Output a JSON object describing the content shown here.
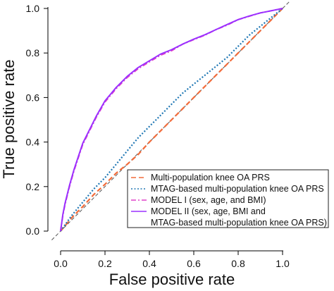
{
  "chart_data": {
    "type": "line",
    "xlabel": "False positive rate",
    "ylabel": "True positive rate",
    "xlim": [
      0,
      1
    ],
    "ylim": [
      0,
      1
    ],
    "x_ticks": [
      "0.0",
      "0.2",
      "0.4",
      "0.6",
      "0.8",
      "1.0"
    ],
    "y_ticks": [
      "0.0",
      "0.2",
      "0.4",
      "0.6",
      "0.8",
      "1.0"
    ],
    "grid": false,
    "legend_position": "bottom-right",
    "reference_line": {
      "x": [
        0,
        1
      ],
      "y": [
        0,
        1
      ],
      "color": "#555555",
      "style": "dashed"
    },
    "series": [
      {
        "name": "Multi-population knee OA PRS",
        "color": "#f26b3a",
        "style": "dashed",
        "x": [
          0,
          0.05,
          0.1,
          0.15,
          0.2,
          0.25,
          0.3,
          0.35,
          0.4,
          0.45,
          0.5,
          0.55,
          0.6,
          0.65,
          0.7,
          0.75,
          0.8,
          0.85,
          0.9,
          0.95,
          1.0
        ],
        "y": [
          0,
          0.06,
          0.11,
          0.165,
          0.21,
          0.26,
          0.3,
          0.345,
          0.4,
          0.45,
          0.5,
          0.55,
          0.6,
          0.65,
          0.7,
          0.75,
          0.8,
          0.85,
          0.9,
          0.95,
          1.0
        ]
      },
      {
        "name": "MTAG-based multi-population knee OA PRS",
        "color": "#1f77b4",
        "style": "dotted",
        "x": [
          0,
          0.05,
          0.1,
          0.15,
          0.2,
          0.25,
          0.3,
          0.35,
          0.4,
          0.45,
          0.5,
          0.55,
          0.6,
          0.65,
          0.7,
          0.75,
          0.8,
          0.85,
          0.9,
          0.95,
          1.0
        ],
        "y": [
          0,
          0.07,
          0.13,
          0.19,
          0.24,
          0.3,
          0.36,
          0.42,
          0.47,
          0.52,
          0.57,
          0.62,
          0.66,
          0.7,
          0.74,
          0.78,
          0.83,
          0.88,
          0.92,
          0.96,
          1.0
        ]
      },
      {
        "name": "MODEL I (sex, age, and BMI)",
        "color": "#e040c8",
        "style": "dashdot",
        "x": [
          0,
          0.01,
          0.02,
          0.04,
          0.06,
          0.08,
          0.1,
          0.13,
          0.16,
          0.2,
          0.25,
          0.3,
          0.35,
          0.4,
          0.45,
          0.5,
          0.55,
          0.6,
          0.65,
          0.7,
          0.75,
          0.8,
          0.85,
          0.9,
          0.95,
          1.0
        ],
        "y": [
          0,
          0.07,
          0.12,
          0.2,
          0.27,
          0.33,
          0.39,
          0.45,
          0.51,
          0.58,
          0.64,
          0.69,
          0.73,
          0.76,
          0.79,
          0.81,
          0.84,
          0.86,
          0.88,
          0.905,
          0.925,
          0.95,
          0.965,
          0.98,
          0.99,
          1.0
        ]
      },
      {
        "name": "MODEL II (sex, age, BMI and MTAG-based multi-population knee OA PRS)",
        "name_lines": [
          "MODEL II (sex, age, BMI and",
          "MTAG-based multi-population knee OA PRS)"
        ],
        "color": "#9b30ff",
        "style": "solid",
        "x": [
          0,
          0.01,
          0.02,
          0.04,
          0.06,
          0.08,
          0.1,
          0.13,
          0.16,
          0.2,
          0.25,
          0.3,
          0.35,
          0.4,
          0.45,
          0.5,
          0.55,
          0.6,
          0.65,
          0.7,
          0.75,
          0.8,
          0.85,
          0.9,
          0.95,
          1.0
        ],
        "y": [
          0,
          0.075,
          0.125,
          0.205,
          0.275,
          0.335,
          0.395,
          0.455,
          0.515,
          0.585,
          0.645,
          0.695,
          0.735,
          0.765,
          0.795,
          0.815,
          0.84,
          0.862,
          0.882,
          0.905,
          0.928,
          0.95,
          0.966,
          0.98,
          0.99,
          1.0
        ]
      }
    ]
  }
}
